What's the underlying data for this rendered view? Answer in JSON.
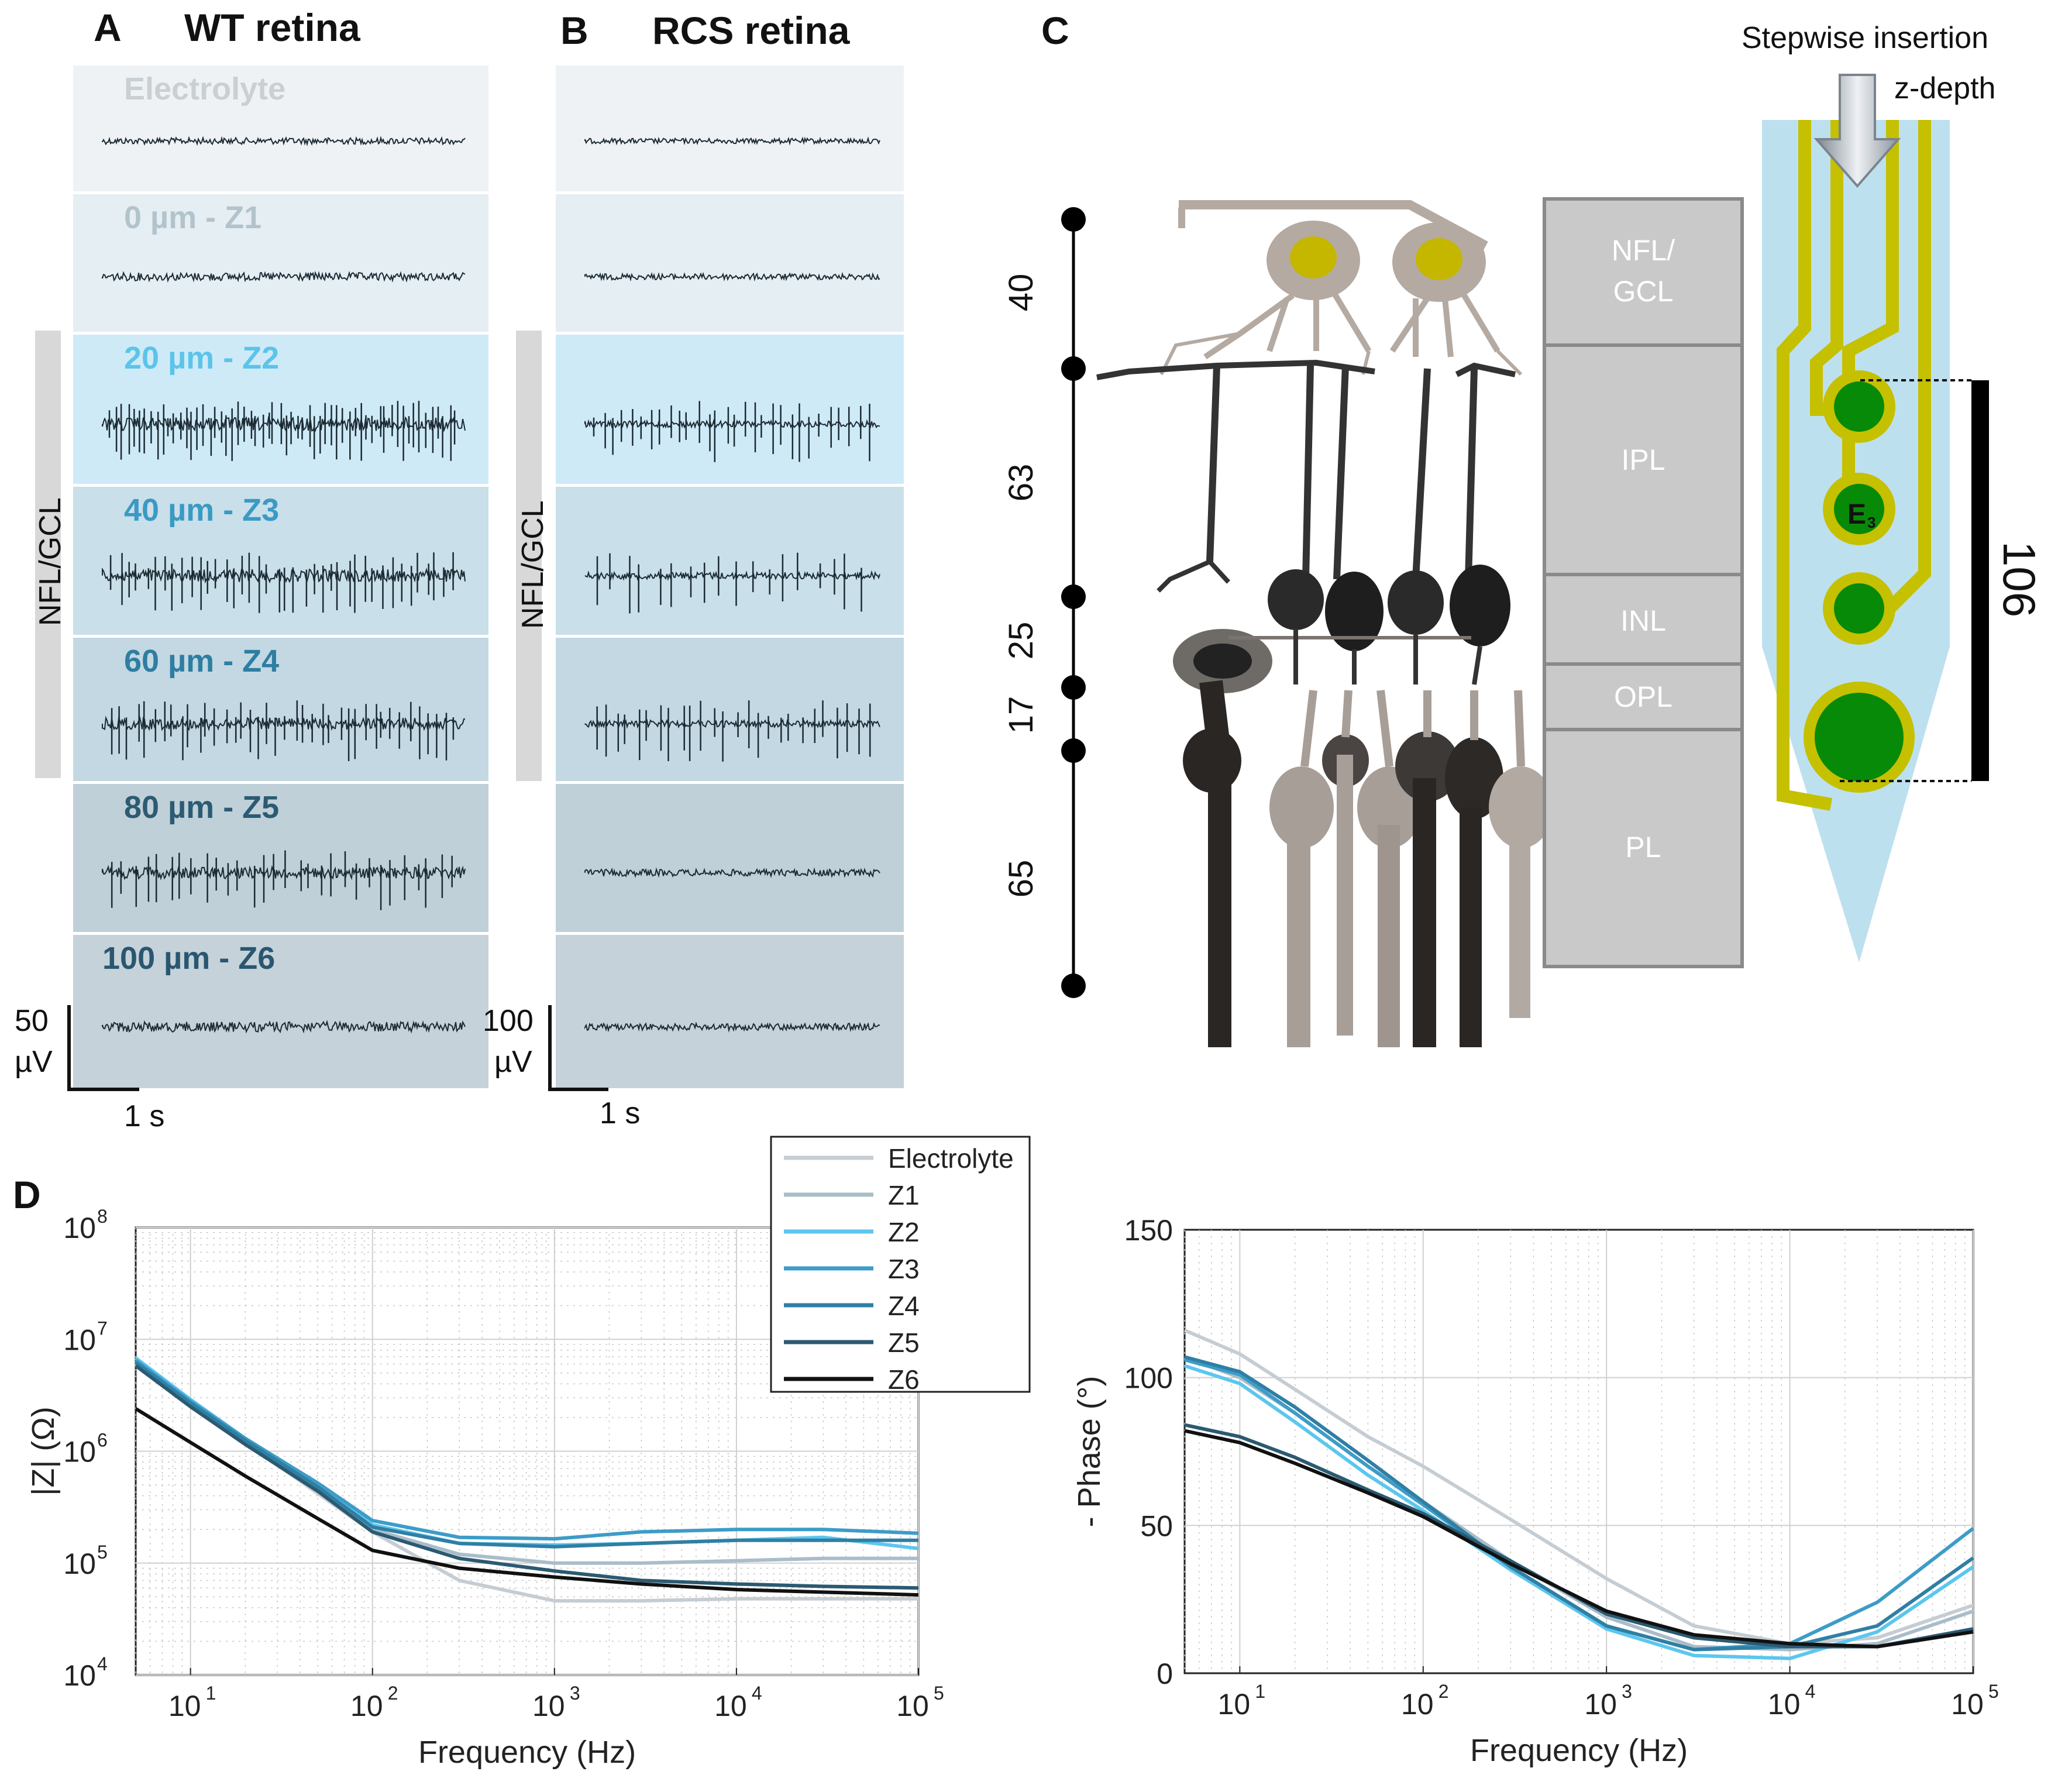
{
  "panels": {
    "a": {
      "letter": "A",
      "title": "WT retina"
    },
    "b": {
      "letter": "B",
      "title": "RCS retina"
    },
    "c": {
      "letter": "C"
    },
    "d": {
      "letter": "D"
    }
  },
  "traces": {
    "rows": [
      {
        "label": "Electrolyte",
        "color": "#c9cfd3",
        "bg": "#eef2f4",
        "wt_noise": 0.35,
        "wt_spikes": 0,
        "rcs_noise": 0.2,
        "rcs_spikes": 0
      },
      {
        "label": "0 µm - Z1",
        "color": "#b3c3cc",
        "bg": "#e5eef3",
        "wt_noise": 0.55,
        "wt_spikes": 0,
        "rcs_noise": 0.3,
        "rcs_spikes": 0
      },
      {
        "label": "20 µm - Z2",
        "color": "#5bc4ea",
        "bg": "#cfeaf7",
        "wt_noise": 1.2,
        "wt_spikes": 60,
        "rcs_noise": 0.35,
        "rcs_spikes": 30
      },
      {
        "label": "40 µm - Z3",
        "color": "#3a9ac4",
        "bg": "#c9dfe9",
        "wt_noise": 1.1,
        "wt_spikes": 40,
        "rcs_noise": 0.4,
        "rcs_spikes": 18
      },
      {
        "label": "60 µm - Z4",
        "color": "#2e7ea2",
        "bg": "#c3d8e3",
        "wt_noise": 1.0,
        "wt_spikes": 40,
        "rcs_noise": 0.4,
        "rcs_spikes": 26
      },
      {
        "label": "80 µm - Z5",
        "color": "#2c5b73",
        "bg": "#c0d0d8",
        "wt_noise": 1.0,
        "wt_spikes": 30,
        "rcs_noise": 0.4,
        "rcs_spikes": 0
      },
      {
        "label": "100 µm - Z6",
        "color": "#2a5670",
        "bg": "#c5d2d9",
        "wt_noise": 0.8,
        "wt_spikes": 0,
        "rcs_noise": 0.4,
        "rcs_spikes": 0
      }
    ],
    "side_label": "NFL/GCL",
    "wt_scale": {
      "value": "50",
      "unit": "µV",
      "time": "1 s"
    },
    "rcs_scale": {
      "value": "100",
      "unit": "µV",
      "time": "1 s"
    }
  },
  "schematic": {
    "depth_values": [
      "40",
      "63",
      "25",
      "17",
      "65"
    ],
    "layers": [
      "NFL/\nGCL",
      "IPL",
      "INL",
      "OPL",
      "PL"
    ],
    "electrode_label": "E",
    "electrode_sub": "3",
    "insertion_label": "Stepwise insertion",
    "zdepth_label": "z-depth",
    "scale_value": "106"
  },
  "chart_data": [
    {
      "type": "line",
      "xlabel": "Frequency (Hz)",
      "ylabel": "|Z| (Ω)",
      "xscale": "log",
      "yscale": "log",
      "xlim": [
        5,
        100000
      ],
      "ylim": [
        10000,
        100000000
      ],
      "xticks": [
        "10^1",
        "10^2",
        "10^3",
        "10^4",
        "10^5"
      ],
      "yticks": [
        "10^4",
        "10^5",
        "10^6",
        "10^7",
        "10^8"
      ],
      "grid": true,
      "legend_position": "top-right",
      "series": [
        {
          "name": "Electrolyte",
          "color": "#c5cdd3",
          "x": [
            5,
            10,
            20,
            50,
            100,
            300,
            1000,
            3000,
            10000,
            30000,
            100000
          ],
          "y": [
            6200000,
            2600000,
            1200000,
            420000,
            190000,
            70000,
            46000,
            46000,
            48000,
            48000,
            48000
          ]
        },
        {
          "name": "Z1",
          "color": "#a9bdc9",
          "x": [
            5,
            10,
            20,
            50,
            100,
            300,
            1000,
            3000,
            10000,
            30000,
            100000
          ],
          "y": [
            6000000,
            2600000,
            1200000,
            450000,
            200000,
            120000,
            100000,
            100000,
            105000,
            110000,
            110000
          ]
        },
        {
          "name": "Z2",
          "color": "#5cc6ee",
          "x": [
            5,
            10,
            20,
            50,
            100,
            300,
            1000,
            3000,
            10000,
            30000,
            100000
          ],
          "y": [
            6800000,
            2900000,
            1300000,
            500000,
            220000,
            150000,
            145000,
            150000,
            160000,
            170000,
            135000
          ]
        },
        {
          "name": "Z3",
          "color": "#3d9cc8",
          "x": [
            5,
            10,
            20,
            50,
            100,
            300,
            1000,
            3000,
            10000,
            30000,
            100000
          ],
          "y": [
            6500000,
            2800000,
            1300000,
            520000,
            240000,
            170000,
            165000,
            190000,
            200000,
            200000,
            185000
          ]
        },
        {
          "name": "Z4",
          "color": "#2f7fa4",
          "x": [
            5,
            10,
            20,
            50,
            100,
            300,
            1000,
            3000,
            10000,
            30000,
            100000
          ],
          "y": [
            6200000,
            2700000,
            1250000,
            480000,
            210000,
            150000,
            140000,
            150000,
            160000,
            160000,
            160000
          ]
        },
        {
          "name": "Z5",
          "color": "#2b5a72",
          "x": [
            5,
            10,
            20,
            50,
            100,
            300,
            1000,
            3000,
            10000,
            30000,
            100000
          ],
          "y": [
            5800000,
            2500000,
            1150000,
            440000,
            190000,
            110000,
            85000,
            70000,
            65000,
            62000,
            60000
          ]
        },
        {
          "name": "Z6",
          "color": "#111111",
          "x": [
            5,
            10,
            20,
            50,
            100,
            300,
            1000,
            3000,
            10000,
            30000,
            100000
          ],
          "y": [
            2400000,
            1200000,
            600000,
            250000,
            130000,
            90000,
            75000,
            65000,
            58000,
            55000,
            52000
          ]
        }
      ]
    },
    {
      "type": "line",
      "xlabel": "Frequency (Hz)",
      "ylabel": "- Phase (°)",
      "xscale": "log",
      "yscale": "linear",
      "xlim": [
        5,
        100000
      ],
      "ylim": [
        0,
        150
      ],
      "xticks": [
        "10^1",
        "10^2",
        "10^3",
        "10^4",
        "10^5"
      ],
      "yticks": [
        "0",
        "50",
        "100",
        "150"
      ],
      "grid": true,
      "series": [
        {
          "name": "Electrolyte",
          "color": "#c5cdd3",
          "x": [
            5,
            10,
            20,
            50,
            100,
            300,
            1000,
            3000,
            10000,
            30000,
            100000
          ],
          "y": [
            116,
            108,
            96,
            80,
            70,
            52,
            32,
            16,
            10,
            12,
            23
          ]
        },
        {
          "name": "Z1",
          "color": "#a9bdc9",
          "x": [
            5,
            10,
            20,
            50,
            100,
            300,
            1000,
            3000,
            10000,
            30000,
            100000
          ],
          "y": [
            107,
            100,
            88,
            70,
            58,
            38,
            19,
            9,
            8,
            10,
            21
          ]
        },
        {
          "name": "Z2",
          "color": "#5cc6ee",
          "x": [
            5,
            10,
            20,
            50,
            100,
            300,
            1000,
            3000,
            10000,
            30000,
            100000
          ],
          "y": [
            104,
            98,
            85,
            67,
            55,
            35,
            15,
            6,
            5,
            14,
            36
          ]
        },
        {
          "name": "Z3",
          "color": "#3d9cc8",
          "x": [
            5,
            10,
            20,
            50,
            100,
            300,
            1000,
            3000,
            10000,
            30000,
            100000
          ],
          "y": [
            106,
            101,
            88,
            70,
            57,
            36,
            16,
            8,
            10,
            24,
            49
          ]
        },
        {
          "name": "Z4",
          "color": "#2f7fa4",
          "x": [
            5,
            10,
            20,
            50,
            100,
            300,
            1000,
            3000,
            10000,
            30000,
            100000
          ],
          "y": [
            107,
            102,
            90,
            72,
            58,
            36,
            16,
            8,
            9,
            16,
            39
          ]
        },
        {
          "name": "Z5",
          "color": "#2b5a72",
          "x": [
            5,
            10,
            20,
            50,
            100,
            300,
            1000,
            3000,
            10000,
            30000,
            100000
          ],
          "y": [
            84,
            80,
            73,
            62,
            54,
            38,
            20,
            12,
            9,
            9,
            15
          ]
        },
        {
          "name": "Z6",
          "color": "#111111",
          "x": [
            5,
            10,
            20,
            50,
            100,
            300,
            1000,
            3000,
            10000,
            30000,
            100000
          ],
          "y": [
            82,
            78,
            71,
            61,
            53,
            37,
            21,
            13,
            10,
            9,
            14
          ]
        }
      ]
    }
  ]
}
